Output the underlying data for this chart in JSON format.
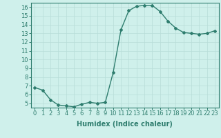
{
  "x": [
    0,
    1,
    2,
    3,
    4,
    5,
    6,
    7,
    8,
    9,
    10,
    11,
    12,
    13,
    14,
    15,
    16,
    17,
    18,
    19,
    20,
    21,
    22,
    23
  ],
  "y": [
    6.8,
    6.5,
    5.4,
    4.8,
    4.7,
    4.6,
    4.9,
    5.1,
    5.0,
    5.1,
    8.5,
    13.4,
    15.6,
    16.1,
    16.2,
    16.2,
    15.5,
    14.4,
    13.6,
    13.1,
    13.0,
    12.9,
    13.0,
    13.3
  ],
  "line_color": "#2e7d6e",
  "bg_color": "#cff0eb",
  "grid_color": "#b8ddd8",
  "xlabel": "Humidex (Indice chaleur)",
  "ylim": [
    4.5,
    16.5
  ],
  "xlim": [
    -0.5,
    23.5
  ],
  "yticks": [
    5,
    6,
    7,
    8,
    9,
    10,
    11,
    12,
    13,
    14,
    15,
    16
  ],
  "xticks": [
    0,
    1,
    2,
    3,
    4,
    5,
    6,
    7,
    8,
    9,
    10,
    11,
    12,
    13,
    14,
    15,
    16,
    17,
    18,
    19,
    20,
    21,
    22,
    23
  ],
  "marker": "D",
  "markersize": 2.0,
  "linewidth": 1.0,
  "xlabel_fontsize": 7,
  "tick_fontsize": 6
}
